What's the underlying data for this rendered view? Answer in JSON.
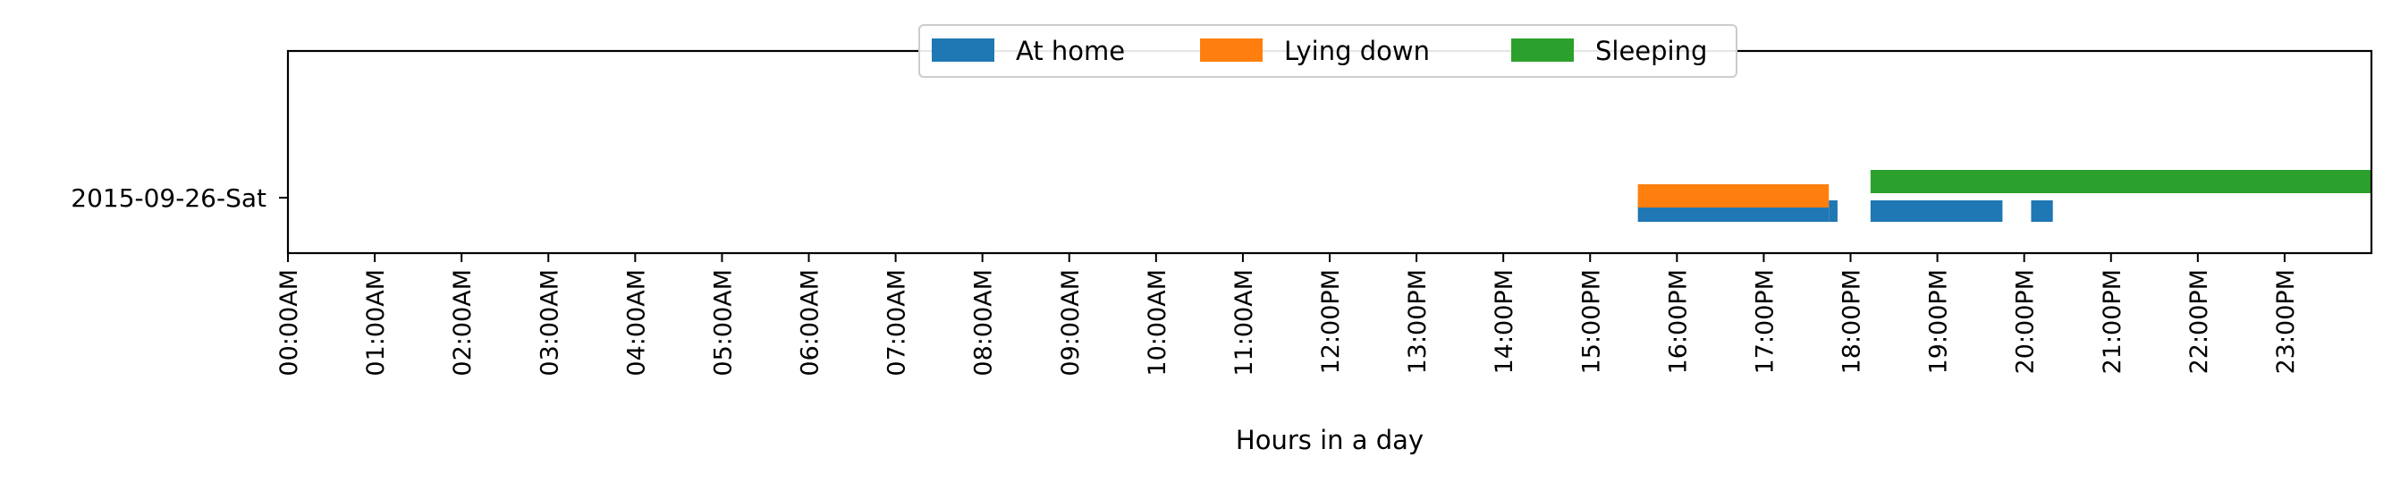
{
  "chart_data": {
    "type": "timeline",
    "title": "",
    "xlabel": "Hours in a day",
    "ylabel": "",
    "xlim": [
      0,
      24
    ],
    "grid": false,
    "legend_placement": "top-center",
    "rows": [
      "2015-09-26-Sat"
    ],
    "x_ticks": [
      {
        "value": 0,
        "label": "00:00AM"
      },
      {
        "value": 1,
        "label": "01:00AM"
      },
      {
        "value": 2,
        "label": "02:00AM"
      },
      {
        "value": 3,
        "label": "03:00AM"
      },
      {
        "value": 4,
        "label": "04:00AM"
      },
      {
        "value": 5,
        "label": "05:00AM"
      },
      {
        "value": 6,
        "label": "06:00AM"
      },
      {
        "value": 7,
        "label": "07:00AM"
      },
      {
        "value": 8,
        "label": "08:00AM"
      },
      {
        "value": 9,
        "label": "09:00AM"
      },
      {
        "value": 10,
        "label": "10:00AM"
      },
      {
        "value": 11,
        "label": "11:00AM"
      },
      {
        "value": 12,
        "label": "12:00PM"
      },
      {
        "value": 13,
        "label": "13:00PM"
      },
      {
        "value": 14,
        "label": "14:00PM"
      },
      {
        "value": 15,
        "label": "15:00PM"
      },
      {
        "value": 16,
        "label": "16:00PM"
      },
      {
        "value": 17,
        "label": "17:00PM"
      },
      {
        "value": 18,
        "label": "18:00PM"
      },
      {
        "value": 19,
        "label": "19:00PM"
      },
      {
        "value": 20,
        "label": "20:00PM"
      },
      {
        "value": 21,
        "label": "21:00PM"
      },
      {
        "value": 22,
        "label": "22:00PM"
      },
      {
        "value": 23,
        "label": "23:00PM"
      }
    ],
    "series": [
      {
        "name": "At home",
        "color": "#1f77b4",
        "row": "2015-09-26-Sat",
        "intervals": [
          [
            15.55,
            17.75
          ],
          [
            17.75,
            17.85
          ],
          [
            18.23,
            19.75
          ],
          [
            20.08,
            20.33
          ]
        ]
      },
      {
        "name": "Lying down",
        "color": "#ff7f0e",
        "row": "2015-09-26-Sat",
        "intervals": [
          [
            15.55,
            17.75
          ]
        ]
      },
      {
        "name": "Sleeping",
        "color": "#2ca02c",
        "row": "2015-09-26-Sat",
        "intervals": [
          [
            18.23,
            24.0
          ]
        ]
      }
    ]
  }
}
